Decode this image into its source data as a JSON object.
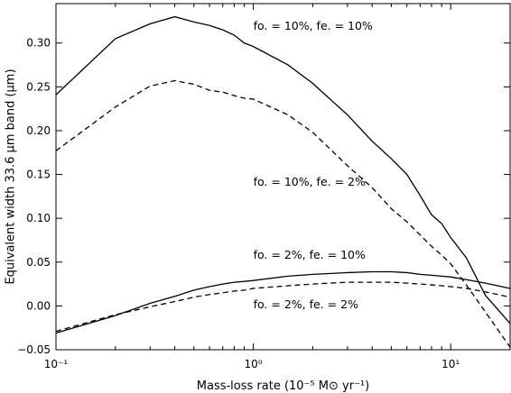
{
  "chart_data": {
    "type": "line",
    "title": "",
    "xlabel": "Mass-loss rate (10⁻⁵ M⊙ yr⁻¹)",
    "ylabel": "Equivalent width 33.6 μm band (μm)",
    "xscale": "log",
    "xlim": [
      0.1,
      20
    ],
    "ylim": [
      -0.05,
      0.345
    ],
    "grid": false,
    "legend": "none",
    "x_ticks": [
      0.1,
      1,
      10
    ],
    "x_tick_labels": [
      "10⁻¹",
      "10⁰",
      "10¹"
    ],
    "y_ticks": [
      -0.05,
      0.0,
      0.05,
      0.1,
      0.15,
      0.2,
      0.25,
      0.3
    ],
    "y_tick_labels": [
      "−0.05",
      "0.00",
      "0.05",
      "0.10",
      "0.15",
      "0.20",
      "0.25",
      "0.30"
    ],
    "series": [
      {
        "style": "solid",
        "x": [
          0.1,
          0.2,
          0.3,
          0.4,
          0.5,
          0.6,
          0.7,
          0.8,
          0.9,
          1.0,
          1.5,
          2.0,
          3.0,
          4.0,
          5.0,
          6.0,
          7.0,
          8.0,
          9.0,
          10.0,
          12.0,
          15.0,
          20.0
        ],
        "values": [
          0.241,
          0.305,
          0.322,
          0.33,
          0.324,
          0.32,
          0.315,
          0.309,
          0.3,
          0.296,
          0.275,
          0.254,
          0.218,
          0.188,
          0.168,
          0.15,
          0.126,
          0.104,
          0.094,
          0.078,
          0.055,
          0.012,
          -0.02
        ]
      },
      {
        "style": "dashed",
        "x": [
          0.1,
          0.2,
          0.3,
          0.4,
          0.5,
          0.6,
          0.7,
          0.8,
          0.9,
          1.0,
          1.5,
          2.0,
          3.0,
          4.0,
          5.0,
          6.0,
          7.0,
          8.0,
          9.0,
          10.0,
          12.0,
          15.0,
          20.0
        ],
        "values": [
          0.177,
          0.227,
          0.251,
          0.257,
          0.253,
          0.246,
          0.244,
          0.24,
          0.237,
          0.236,
          0.218,
          0.198,
          0.16,
          0.135,
          0.111,
          0.096,
          0.081,
          0.068,
          0.058,
          0.048,
          0.024,
          -0.007,
          -0.047
        ]
      },
      {
        "style": "solid",
        "x": [
          0.1,
          0.2,
          0.3,
          0.4,
          0.5,
          0.6,
          0.7,
          0.8,
          0.9,
          1.0,
          1.5,
          2.0,
          3.0,
          4.0,
          5.0,
          6.0,
          7.0,
          8.0,
          9.0,
          10.0,
          12.0,
          15.0,
          20.0
        ],
        "values": [
          -0.031,
          -0.011,
          0.003,
          0.011,
          0.018,
          0.022,
          0.025,
          0.027,
          0.028,
          0.029,
          0.034,
          0.036,
          0.038,
          0.039,
          0.039,
          0.038,
          0.036,
          0.035,
          0.034,
          0.033,
          0.03,
          0.026,
          0.02
        ]
      },
      {
        "style": "dashed",
        "x": [
          0.1,
          0.2,
          0.3,
          0.4,
          0.5,
          0.6,
          0.7,
          0.8,
          0.9,
          1.0,
          1.5,
          2.0,
          3.0,
          4.0,
          5.0,
          6.0,
          7.0,
          8.0,
          9.0,
          10.0,
          12.0,
          15.0,
          20.0
        ],
        "values": [
          -0.029,
          -0.01,
          -0.001,
          0.005,
          0.01,
          0.013,
          0.015,
          0.017,
          0.018,
          0.02,
          0.023,
          0.025,
          0.027,
          0.027,
          0.027,
          0.026,
          0.025,
          0.024,
          0.023,
          0.022,
          0.02,
          0.016,
          0.01
        ]
      }
    ],
    "annotations": [
      {
        "text": "fo. = 10%, fe. = 10%",
        "x": 1.0,
        "y": 0.315
      },
      {
        "text": "fo. = 10%, fe. = 2%",
        "x": 1.0,
        "y": 0.137
      },
      {
        "text": "fo. = 2%, fe. = 10%",
        "x": 1.0,
        "y": 0.054
      },
      {
        "text": "fo. = 2%, fe. = 2%",
        "x": 1.0,
        "y": -0.0025
      }
    ]
  }
}
